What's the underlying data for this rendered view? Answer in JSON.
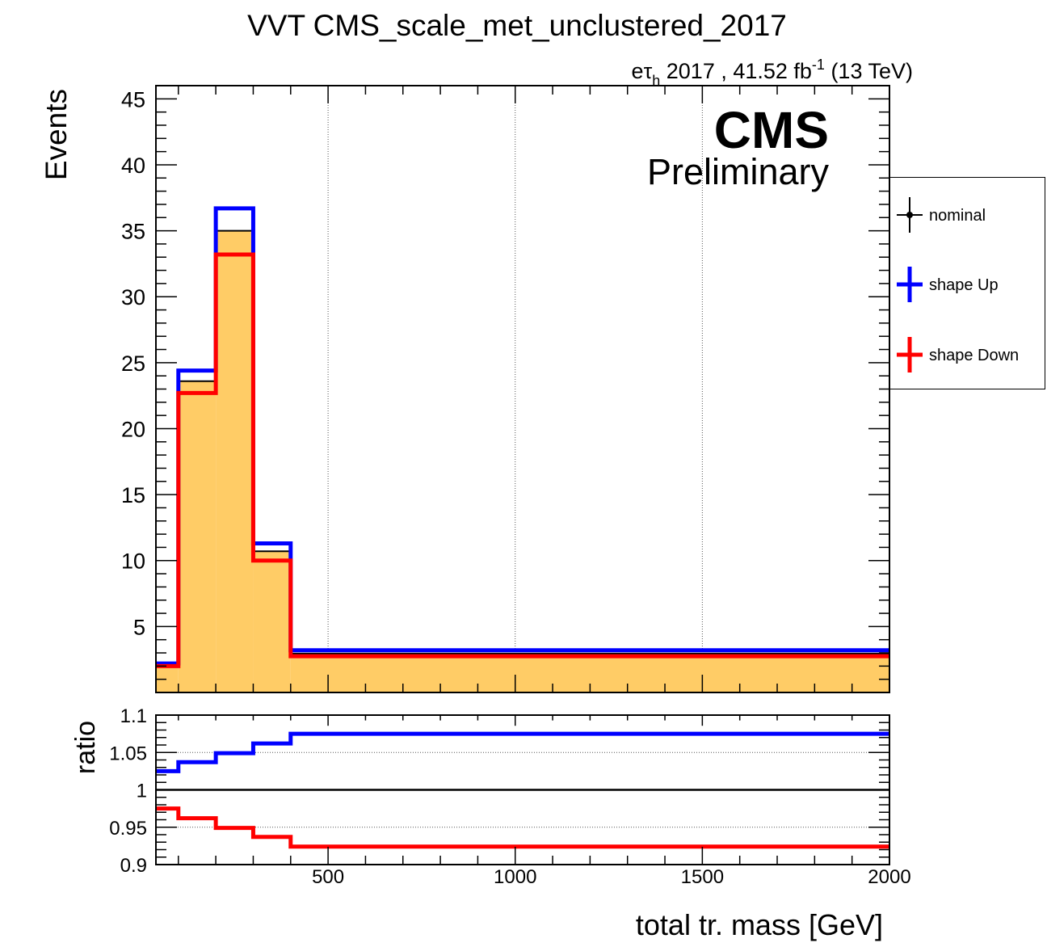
{
  "title": "VVT CMS_scale_met_unclustered_2017",
  "lumi": {
    "channel_e": "e",
    "channel_tau": "τ",
    "channel_sub": "h",
    "year_lumi": " 2017 , 41.52 fb",
    "sup": "-1",
    "energy": " (13 TeV)"
  },
  "cms_label": "CMS",
  "preliminary_label": "Preliminary",
  "legend": [
    {
      "label": "nominal",
      "color": "#000000",
      "marker": "dot"
    },
    {
      "label": "shape Up",
      "color": "#0000ff",
      "marker": "cross"
    },
    {
      "label": "shape Down",
      "color": "#ff0000",
      "marker": "cross"
    }
  ],
  "colors": {
    "fill": "#ffcc66",
    "nominal": "#000000",
    "up": "#0000ff",
    "down": "#ff0000"
  },
  "chart_data": [
    {
      "type": "histogram",
      "panel": "main",
      "ylabel": "Events",
      "xlim": [
        40,
        2000
      ],
      "ylim": [
        0,
        46
      ],
      "ytick_labels": [
        "5",
        "10",
        "15",
        "20",
        "25",
        "30",
        "35",
        "40",
        "45"
      ],
      "bin_edges": [
        40,
        100,
        200,
        300,
        400,
        2000
      ],
      "series": [
        {
          "name": "nominal",
          "values": [
            2.1,
            23.6,
            35.0,
            10.7,
            2.95
          ]
        },
        {
          "name": "shape Up",
          "values": [
            2.2,
            24.4,
            36.7,
            11.3,
            3.2
          ]
        },
        {
          "name": "shape Down",
          "values": [
            2.0,
            22.7,
            33.2,
            10.0,
            2.75
          ]
        }
      ],
      "xgrid_at": [
        500,
        1000,
        1500
      ]
    },
    {
      "type": "line",
      "panel": "ratio",
      "ylabel": "ratio",
      "xlabel": "total tr. mass [GeV]",
      "xlim": [
        40,
        2000
      ],
      "ylim": [
        0.9,
        1.1
      ],
      "ytick_labels": [
        "0.9",
        "0.95",
        "1",
        "1.05",
        "1.1"
      ],
      "xtick_labels": [
        "500",
        "1000",
        "1500",
        "2000"
      ],
      "bin_edges": [
        40,
        100,
        200,
        300,
        400,
        2000
      ],
      "series": [
        {
          "name": "shape Up",
          "values": [
            1.025,
            1.037,
            1.049,
            1.062,
            1.075
          ]
        },
        {
          "name": "shape Down",
          "values": [
            0.975,
            0.962,
            0.949,
            0.937,
            0.924
          ]
        }
      ],
      "reference": 1.0
    }
  ]
}
